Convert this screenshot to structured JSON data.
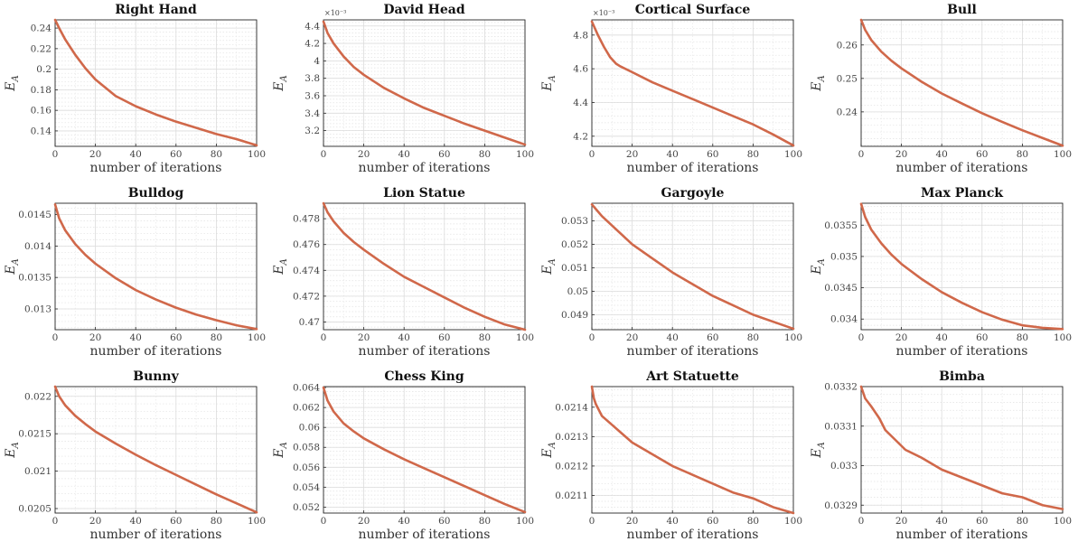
{
  "figure": {
    "xlabel": "number of iterations",
    "ylabel": "E_A",
    "line_color": "#d0684a"
  },
  "chart_data": [
    {
      "type": "line",
      "title": "Right Hand",
      "xlabel": "number of iterations",
      "ylabel": "E_A",
      "xlim": [
        0,
        100
      ],
      "ylim": [
        0.125,
        0.248
      ],
      "exponent_label": "",
      "xticks": [
        0,
        20,
        40,
        60,
        80,
        100
      ],
      "xtick_labels": [
        "0",
        "20",
        "40",
        "60",
        "80",
        "100"
      ],
      "yticks": [
        0.14,
        0.16,
        0.18,
        0.2,
        0.22,
        0.24
      ],
      "ytick_labels": [
        "0.14",
        "0.16",
        "0.18",
        "0.2",
        "0.22",
        "0.24"
      ],
      "series": [
        {
          "x": [
            0,
            2,
            5,
            10,
            15,
            20,
            30,
            40,
            50,
            60,
            70,
            80,
            90,
            100
          ],
          "y": [
            0.248,
            0.24,
            0.229,
            0.214,
            0.201,
            0.19,
            0.174,
            0.164,
            0.156,
            0.149,
            0.143,
            0.137,
            0.132,
            0.126
          ]
        }
      ]
    },
    {
      "type": "line",
      "title": "David Head",
      "xlabel": "number of iterations",
      "ylabel": "E_A",
      "xlim": [
        0,
        100
      ],
      "ylim": [
        3.02,
        4.47
      ],
      "exponent_label": "×10⁻³",
      "xticks": [
        0,
        20,
        40,
        60,
        80,
        100
      ],
      "xtick_labels": [
        "0",
        "20",
        "40",
        "60",
        "80",
        "100"
      ],
      "yticks": [
        3.2,
        3.4,
        3.6,
        3.8,
        4,
        4.2,
        4.4
      ],
      "ytick_labels": [
        "3.2",
        "3.4",
        "3.6",
        "3.8",
        "4",
        "4.2",
        "4.4"
      ],
      "series": [
        {
          "x": [
            0,
            2,
            5,
            10,
            15,
            20,
            30,
            40,
            50,
            60,
            70,
            80,
            90,
            100
          ],
          "y": [
            4.45,
            4.32,
            4.2,
            4.05,
            3.93,
            3.84,
            3.69,
            3.57,
            3.46,
            3.37,
            3.28,
            3.2,
            3.12,
            3.04
          ]
        }
      ]
    },
    {
      "type": "line",
      "title": "Cortical Surface",
      "xlabel": "number of iterations",
      "ylabel": "E_A",
      "xlim": [
        0,
        100
      ],
      "ylim": [
        4.14,
        4.89
      ],
      "exponent_label": "×10⁻³",
      "xticks": [
        0,
        20,
        40,
        60,
        80,
        100
      ],
      "xtick_labels": [
        "0",
        "20",
        "40",
        "60",
        "80",
        "100"
      ],
      "yticks": [
        4.2,
        4.4,
        4.6,
        4.8
      ],
      "ytick_labels": [
        "4.2",
        "4.4",
        "4.6",
        "4.8"
      ],
      "series": [
        {
          "x": [
            0,
            3,
            6,
            9,
            12,
            14,
            20,
            30,
            40,
            50,
            60,
            70,
            80,
            90,
            100
          ],
          "y": [
            4.88,
            4.8,
            4.73,
            4.67,
            4.63,
            4.615,
            4.58,
            4.52,
            4.47,
            4.42,
            4.37,
            4.32,
            4.27,
            4.21,
            4.145
          ]
        }
      ]
    },
    {
      "type": "line",
      "title": "Bull",
      "xlabel": "number of iterations",
      "ylabel": "E_A",
      "xlim": [
        0,
        100
      ],
      "ylim": [
        0.2297,
        0.2675
      ],
      "exponent_label": "",
      "xticks": [
        0,
        20,
        40,
        60,
        80,
        100
      ],
      "xtick_labels": [
        "0",
        "20",
        "40",
        "60",
        "80",
        "100"
      ],
      "yticks": [
        0.24,
        0.25,
        0.26
      ],
      "ytick_labels": [
        "0.24",
        "0.25",
        "0.26"
      ],
      "series": [
        {
          "x": [
            0,
            2,
            5,
            10,
            15,
            20,
            30,
            40,
            50,
            60,
            70,
            80,
            90,
            100
          ],
          "y": [
            0.2675,
            0.2645,
            0.2615,
            0.258,
            0.2553,
            0.253,
            0.249,
            0.2455,
            0.2425,
            0.2396,
            0.237,
            0.2345,
            0.2322,
            0.2299
          ]
        }
      ]
    },
    {
      "type": "line",
      "title": "Bulldog",
      "xlabel": "number of iterations",
      "ylabel": "E_A",
      "xlim": [
        0,
        100
      ],
      "ylim": [
        0.01267,
        0.01468
      ],
      "exponent_label": "",
      "xticks": [
        0,
        20,
        40,
        60,
        80,
        100
      ],
      "xtick_labels": [
        "0",
        "20",
        "40",
        "60",
        "80",
        "100"
      ],
      "yticks": [
        0.013,
        0.0135,
        0.014,
        0.0145
      ],
      "ytick_labels": [
        "0.013",
        "0.0135",
        "0.014",
        "0.0145"
      ],
      "series": [
        {
          "x": [
            0,
            2,
            5,
            10,
            15,
            20,
            30,
            40,
            50,
            60,
            70,
            80,
            90,
            100
          ],
          "y": [
            0.01466,
            0.01444,
            0.01425,
            0.01403,
            0.01386,
            0.01372,
            0.01349,
            0.0133,
            0.01315,
            0.01302,
            0.01291,
            0.01282,
            0.01274,
            0.01268
          ]
        }
      ]
    },
    {
      "type": "line",
      "title": "Lion Statue",
      "xlabel": "number of iterations",
      "ylabel": "E_A",
      "xlim": [
        0,
        100
      ],
      "ylim": [
        0.4694,
        0.4792
      ],
      "exponent_label": "",
      "xticks": [
        0,
        20,
        40,
        60,
        80,
        100
      ],
      "xtick_labels": [
        "0",
        "20",
        "40",
        "60",
        "80",
        "100"
      ],
      "yticks": [
        0.47,
        0.472,
        0.474,
        0.476,
        0.478
      ],
      "ytick_labels": [
        "0.47",
        "0.472",
        "0.474",
        "0.476",
        "0.478"
      ],
      "series": [
        {
          "x": [
            0,
            2,
            5,
            10,
            15,
            20,
            30,
            40,
            50,
            60,
            70,
            80,
            90,
            100
          ],
          "y": [
            0.4792,
            0.4785,
            0.4778,
            0.4769,
            0.4762,
            0.4756,
            0.4745,
            0.4735,
            0.4727,
            0.4719,
            0.4711,
            0.4704,
            0.4698,
            0.4694
          ]
        }
      ]
    },
    {
      "type": "line",
      "title": "Gargoyle",
      "xlabel": "number of iterations",
      "ylabel": "E_A",
      "xlim": [
        0,
        100
      ],
      "ylim": [
        0.04836,
        0.05375
      ],
      "exponent_label": "",
      "xticks": [
        0,
        20,
        40,
        60,
        80,
        100
      ],
      "xtick_labels": [
        "0",
        "20",
        "40",
        "60",
        "80",
        "100"
      ],
      "yticks": [
        0.049,
        0.05,
        0.051,
        0.052,
        0.053
      ],
      "ytick_labels": [
        "0.049",
        "0.05",
        "0.051",
        "0.052",
        "0.053"
      ],
      "series": [
        {
          "x": [
            0,
            2,
            5,
            10,
            15,
            20,
            30,
            40,
            50,
            60,
            70,
            80,
            90,
            100
          ],
          "y": [
            0.0537,
            0.0535,
            0.0532,
            0.0528,
            0.0524,
            0.052,
            0.0514,
            0.0508,
            0.0503,
            0.0498,
            0.0494,
            0.049,
            0.0487,
            0.0484
          ]
        }
      ]
    },
    {
      "type": "line",
      "title": "Max Planck",
      "xlabel": "number of iterations",
      "ylabel": "E_A",
      "xlim": [
        0,
        100
      ],
      "ylim": [
        0.03383,
        0.03585
      ],
      "exponent_label": "",
      "xticks": [
        0,
        20,
        40,
        60,
        80,
        100
      ],
      "xtick_labels": [
        "0",
        "20",
        "40",
        "60",
        "80",
        "100"
      ],
      "yticks": [
        0.034,
        0.0345,
        0.035,
        0.0355
      ],
      "ytick_labels": [
        "0.034",
        "0.0345",
        "0.035",
        "0.0355"
      ],
      "series": [
        {
          "x": [
            0,
            2,
            5,
            10,
            15,
            20,
            30,
            40,
            50,
            60,
            70,
            80,
            90,
            100
          ],
          "y": [
            0.03584,
            0.03563,
            0.03543,
            0.03521,
            0.03503,
            0.03488,
            0.03464,
            0.03443,
            0.03426,
            0.03411,
            0.03399,
            0.0339,
            0.03386,
            0.03384
          ]
        }
      ]
    },
    {
      "type": "line",
      "title": "Bunny",
      "xlabel": "number of iterations",
      "ylabel": "E_A",
      "xlim": [
        0,
        100
      ],
      "ylim": [
        0.02044,
        0.02213
      ],
      "exponent_label": "",
      "xticks": [
        0,
        20,
        40,
        60,
        80,
        100
      ],
      "xtick_labels": [
        "0",
        "20",
        "40",
        "60",
        "80",
        "100"
      ],
      "yticks": [
        0.0205,
        0.021,
        0.0215,
        0.022
      ],
      "ytick_labels": [
        "0.0205",
        "0.021",
        "0.0215",
        "0.022"
      ],
      "series": [
        {
          "x": [
            0,
            2,
            5,
            10,
            15,
            20,
            30,
            40,
            50,
            60,
            70,
            80,
            90,
            100
          ],
          "y": [
            0.02213,
            0.022,
            0.02188,
            0.02174,
            0.02163,
            0.02153,
            0.02137,
            0.02122,
            0.02108,
            0.02095,
            0.02082,
            0.02069,
            0.02057,
            0.02045
          ]
        }
      ]
    },
    {
      "type": "line",
      "title": "Chess King",
      "xlabel": "number of iterations",
      "ylabel": "E_A",
      "xlim": [
        0,
        100
      ],
      "ylim": [
        0.0514,
        0.0641
      ],
      "exponent_label": "",
      "xticks": [
        0,
        20,
        40,
        60,
        80,
        100
      ],
      "xtick_labels": [
        "0",
        "20",
        "40",
        "60",
        "80",
        "100"
      ],
      "yticks": [
        0.052,
        0.054,
        0.056,
        0.058,
        0.06,
        0.062,
        0.064
      ],
      "ytick_labels": [
        "0.052",
        "0.054",
        "0.056",
        "0.058",
        "0.06",
        "0.062",
        "0.064"
      ],
      "series": [
        {
          "x": [
            0,
            2,
            5,
            10,
            15,
            20,
            30,
            40,
            50,
            60,
            70,
            80,
            90,
            100
          ],
          "y": [
            0.064,
            0.0627,
            0.0616,
            0.0604,
            0.0596,
            0.0589,
            0.0578,
            0.0568,
            0.0559,
            0.055,
            0.0541,
            0.0532,
            0.0523,
            0.0515
          ]
        }
      ]
    },
    {
      "type": "line",
      "title": "Art Statuette",
      "xlabel": "number of iterations",
      "ylabel": "E_A",
      "xlim": [
        0,
        100
      ],
      "ylim": [
        0.02104,
        0.02147
      ],
      "exponent_label": "",
      "xticks": [
        0,
        20,
        40,
        60,
        80,
        100
      ],
      "xtick_labels": [
        "0",
        "20",
        "40",
        "60",
        "80",
        "100"
      ],
      "yticks": [
        0.0211,
        0.0212,
        0.0213,
        0.0214
      ],
      "ytick_labels": [
        "0.0211",
        "0.0212",
        "0.0213",
        "0.0214"
      ],
      "series": [
        {
          "x": [
            0,
            1,
            2,
            5,
            10,
            15,
            20,
            30,
            40,
            50,
            60,
            70,
            80,
            90,
            100
          ],
          "y": [
            0.02147,
            0.02143,
            0.02141,
            0.02137,
            0.02134,
            0.02131,
            0.02128,
            0.02124,
            0.0212,
            0.02117,
            0.02114,
            0.02111,
            0.02109,
            0.02106,
            0.02104
          ]
        }
      ]
    },
    {
      "type": "line",
      "title": "Bimba",
      "xlabel": "number of iterations",
      "ylabel": "E_A",
      "xlim": [
        0,
        100
      ],
      "ylim": [
        0.03288,
        0.0332
      ],
      "exponent_label": "",
      "xticks": [
        0,
        20,
        40,
        60,
        80,
        100
      ],
      "xtick_labels": [
        "0",
        "20",
        "40",
        "60",
        "80",
        "100"
      ],
      "yticks": [
        0.0329,
        0.033,
        0.0331,
        0.0332
      ],
      "ytick_labels": [
        "0.0329",
        "0.033",
        "0.0331",
        "0.0332"
      ],
      "series": [
        {
          "x": [
            0,
            2,
            5,
            9,
            12,
            14,
            18,
            22,
            30,
            40,
            50,
            60,
            70,
            80,
            90,
            100
          ],
          "y": [
            0.0332,
            0.03317,
            0.03315,
            0.03312,
            0.03309,
            0.03308,
            0.03306,
            0.03304,
            0.03302,
            0.03299,
            0.03297,
            0.03295,
            0.03293,
            0.03292,
            0.0329,
            0.03289
          ]
        }
      ]
    }
  ]
}
